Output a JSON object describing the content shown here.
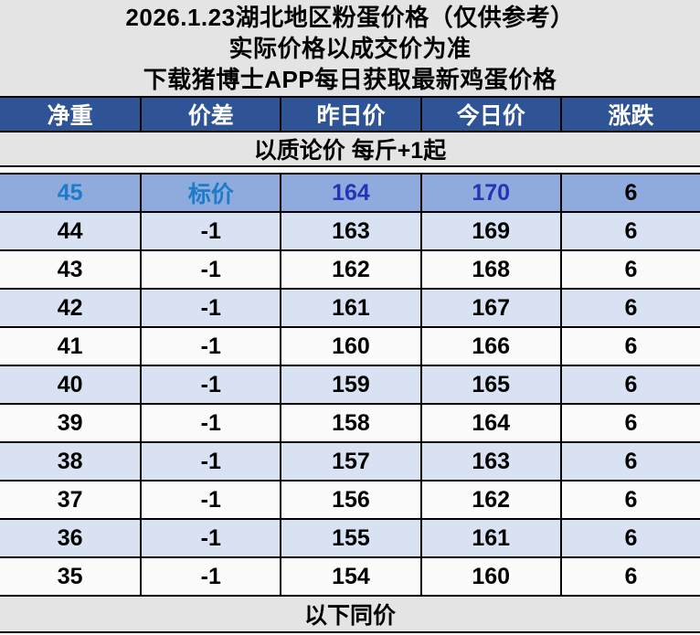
{
  "header": {
    "lines": [
      "2026.1.23湖北地区粉蛋价格（仅供参考）",
      "实际价格以成交价为准",
      "下载猪博士APP每日获取最新鸡蛋价格"
    ]
  },
  "table": {
    "columns": [
      "净重",
      "价差",
      "昨日价",
      "今日价",
      "涨跌"
    ],
    "notice": "以质论价 每斤+1起",
    "rows": [
      {
        "style": "highlight",
        "cells": [
          "45",
          "标价",
          "164",
          "170",
          "6"
        ]
      },
      {
        "style": "alt",
        "cells": [
          "44",
          "-1",
          "163",
          "169",
          "6"
        ]
      },
      {
        "style": "plain",
        "cells": [
          "43",
          "-1",
          "162",
          "168",
          "6"
        ]
      },
      {
        "style": "alt",
        "cells": [
          "42",
          "-1",
          "161",
          "167",
          "6"
        ]
      },
      {
        "style": "plain",
        "cells": [
          "41",
          "-1",
          "160",
          "166",
          "6"
        ]
      },
      {
        "style": "alt",
        "cells": [
          "40",
          "-1",
          "159",
          "165",
          "6"
        ]
      },
      {
        "style": "plain",
        "cells": [
          "39",
          "-1",
          "158",
          "164",
          "6"
        ]
      },
      {
        "style": "alt",
        "cells": [
          "38",
          "-1",
          "157",
          "163",
          "6"
        ]
      },
      {
        "style": "plain",
        "cells": [
          "37",
          "-1",
          "156",
          "162",
          "6"
        ]
      },
      {
        "style": "alt",
        "cells": [
          "36",
          "-1",
          "155",
          "161",
          "6"
        ]
      },
      {
        "style": "plain",
        "cells": [
          "35",
          "-1",
          "154",
          "160",
          "6"
        ]
      }
    ],
    "footer": "以下同价"
  },
  "colors": {
    "header_bg": "#E5E4E4",
    "column_header_bg": "#2F5496",
    "column_header_text": "#FFFFFF",
    "row_alt_bg": "#D9E2F3",
    "row_plain_bg": "#FBFBFB",
    "highlight_row_bg": "#8FAADC",
    "highlight_label_text": "#1B7CC9",
    "highlight_price_text": "#2335B4",
    "border": "#000000"
  }
}
